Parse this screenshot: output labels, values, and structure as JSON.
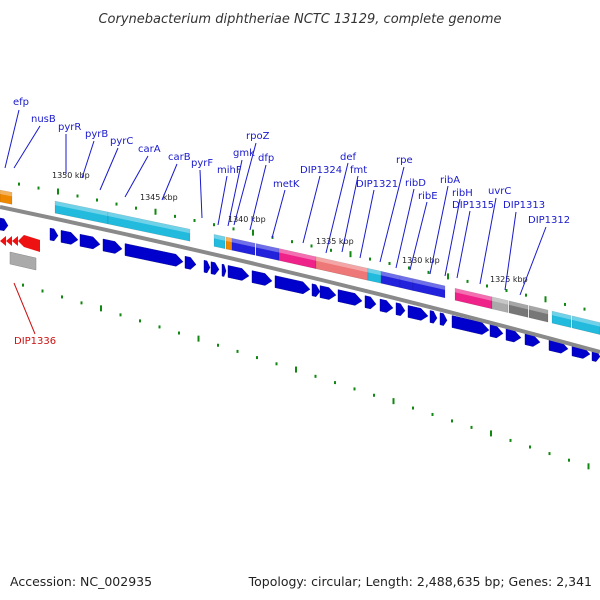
{
  "title": "Corynebacterium diphtheriae NCTC 13129, complete genome",
  "accession_text": "Accession: NC_002935",
  "summary_text": "Topology: circular; Length: 2,488,635 bp; Genes: 2,341",
  "colors": {
    "forward_gene": "#2222dd",
    "reverse_gene": "#0000cc",
    "cyan_gene": "#22bbdd",
    "pink_gene": "#ee2288",
    "salmon_gene": "#ee7777",
    "grey_gene": "#777777",
    "orange_gene": "#ee8800",
    "red_gene": "#ee1111",
    "label_blue": "#1a1acc",
    "label_red": "#cc1111",
    "tick_green": "#118811",
    "backbone": "#888888"
  },
  "scale_labels": [
    "1350 kbp",
    "1345 kbp",
    "1340 kbp",
    "1335 kbp",
    "1330 kbp",
    "1325 kbp"
  ],
  "gene_labels": [
    {
      "text": "efp",
      "color": "blue"
    },
    {
      "text": "nusB",
      "color": "blue"
    },
    {
      "text": "pyrR",
      "color": "blue"
    },
    {
      "text": "pyrB",
      "color": "blue"
    },
    {
      "text": "pyrC",
      "color": "blue"
    },
    {
      "text": "carA",
      "color": "blue"
    },
    {
      "text": "carB",
      "color": "blue"
    },
    {
      "text": "pyrF",
      "color": "blue"
    },
    {
      "text": "mihF",
      "color": "blue"
    },
    {
      "text": "gmk",
      "color": "blue"
    },
    {
      "text": "rpoZ",
      "color": "blue"
    },
    {
      "text": "dfp",
      "color": "blue"
    },
    {
      "text": "metK",
      "color": "blue"
    },
    {
      "text": "DIP1324",
      "color": "blue"
    },
    {
      "text": "def",
      "color": "blue"
    },
    {
      "text": "fmt",
      "color": "blue"
    },
    {
      "text": "DIP1321",
      "color": "blue"
    },
    {
      "text": "rpe",
      "color": "blue"
    },
    {
      "text": "ribD",
      "color": "blue"
    },
    {
      "text": "ribE",
      "color": "blue"
    },
    {
      "text": "ribA",
      "color": "blue"
    },
    {
      "text": "ribH",
      "color": "blue"
    },
    {
      "text": "DIP1315",
      "color": "blue"
    },
    {
      "text": "uvrC",
      "color": "blue"
    },
    {
      "text": "DIP1313",
      "color": "blue"
    },
    {
      "text": "DIP1312",
      "color": "blue"
    },
    {
      "text": "DIP1336",
      "color": "red"
    }
  ]
}
